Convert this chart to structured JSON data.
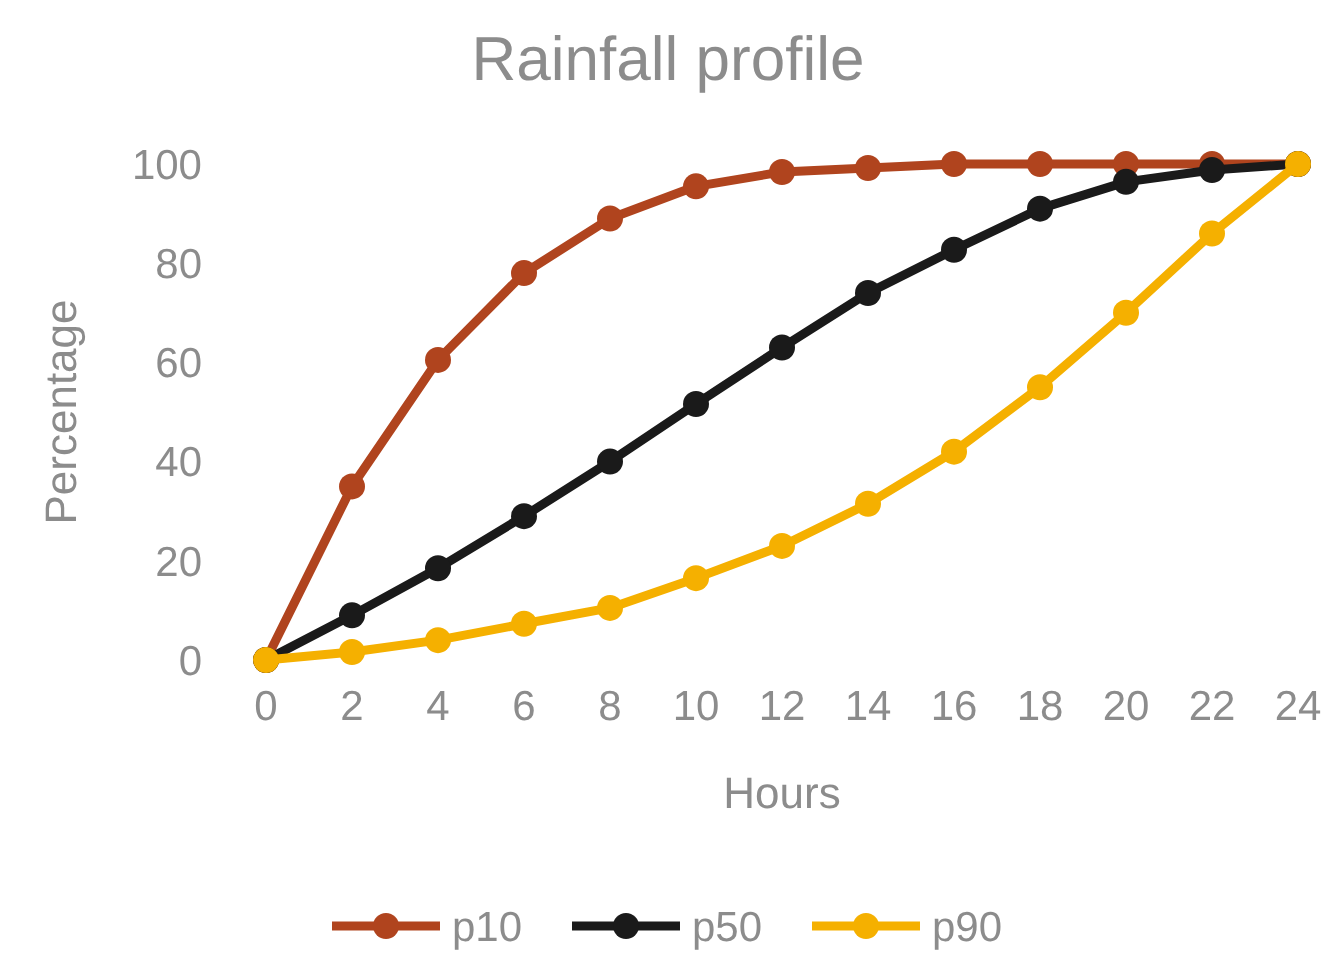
{
  "chart_data": {
    "type": "line",
    "title": "Rainfall profile",
    "xlabel": "Hours",
    "ylabel": "Percentage",
    "x": [
      0,
      2,
      4,
      6,
      8,
      10,
      12,
      14,
      16,
      18,
      20,
      22,
      24
    ],
    "series": [
      {
        "name": "p10",
        "color": "#b0441e",
        "values": [
          0,
          35,
          60.5,
          78,
          89,
          95.5,
          98.4,
          99.2,
          100,
          100,
          100,
          100,
          100
        ]
      },
      {
        "name": "p50",
        "color": "#1a1a1a",
        "values": [
          0,
          9,
          18.5,
          29,
          40,
          51.6,
          63,
          74,
          82.7,
          91,
          96.4,
          98.8,
          100
        ]
      },
      {
        "name": "p90",
        "color": "#f5b000",
        "values": [
          0,
          1.6,
          4,
          7.3,
          10.5,
          16.5,
          23,
          31.5,
          42,
          55,
          70,
          86,
          100
        ]
      }
    ],
    "xlim": [
      0,
      24
    ],
    "xticks": [
      0,
      2,
      4,
      6,
      8,
      10,
      12,
      14,
      16,
      18,
      20,
      22,
      24
    ],
    "ylim": [
      0,
      100
    ],
    "yticks": [
      0,
      20,
      40,
      60,
      80,
      100
    ],
    "grid": false,
    "legend": "bottom",
    "marker": "circle",
    "line_style": "solid"
  }
}
